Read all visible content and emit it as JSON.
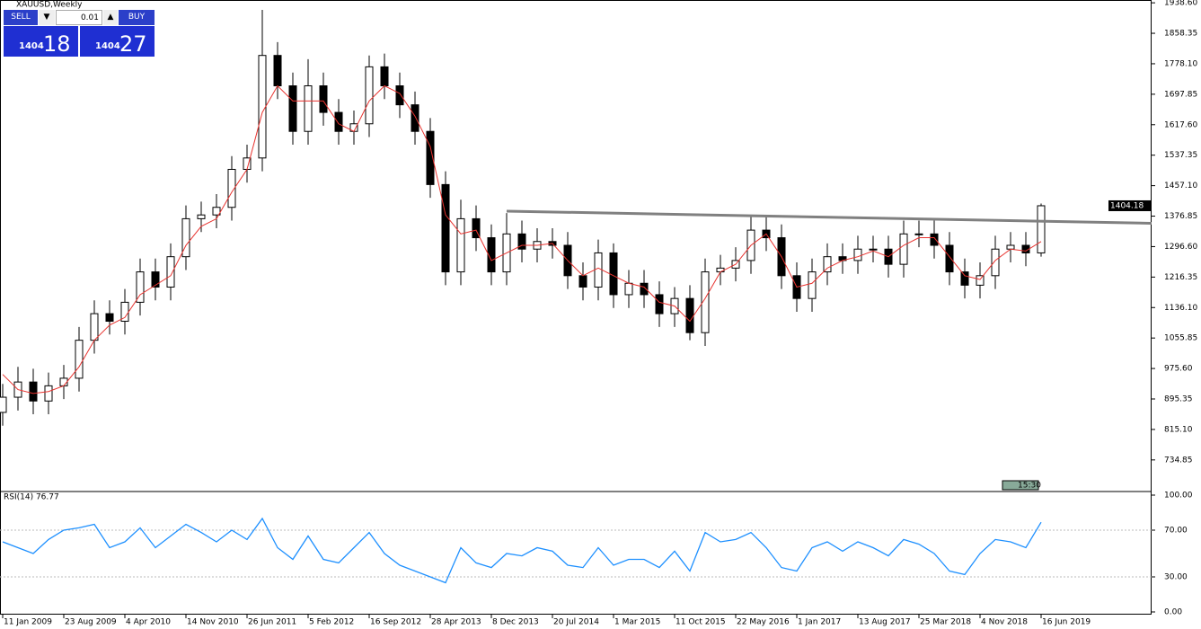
{
  "chart_data": {
    "type": "candlestick",
    "title": "XAUUSD,Weekly",
    "categories": [
      "11 Jan 2009",
      null,
      null,
      null,
      "23 Aug 2009",
      null,
      null,
      null,
      "4 Apr 2010",
      null,
      null,
      null,
      "14 Nov 2010",
      null,
      null,
      null,
      "26 Jun 2011",
      null,
      null,
      null,
      "5 Feb 2012",
      null,
      null,
      null,
      "16 Sep 2012",
      null,
      null,
      null,
      "28 Apr 2013",
      null,
      null,
      null,
      "8 Dec 2013",
      null,
      null,
      null,
      "20 Jul 2014",
      null,
      null,
      null,
      "1 Mar 2015",
      null,
      null,
      null,
      "11 Oct 2015",
      null,
      null,
      null,
      "22 May 2016",
      null,
      null,
      null,
      "1 Jan 2017",
      null,
      null,
      null,
      "13 Aug 2017",
      null,
      null,
      null,
      "25 Mar 2018",
      null,
      null,
      null,
      "4 Nov 2018",
      null,
      null,
      null,
      "16 Jun 2019"
    ],
    "open": [
      860,
      900,
      940,
      890,
      930,
      950,
      1050,
      1120,
      1100,
      1150,
      1230,
      1190,
      1270,
      1370,
      1380,
      1400,
      1500,
      1530,
      1800,
      1720,
      1600,
      1720,
      1650,
      1600,
      1620,
      1770,
      1720,
      1670,
      1600,
      1460,
      1230,
      1370,
      1320,
      1230,
      1330,
      1290,
      1310,
      1300,
      1220,
      1190,
      1280,
      1170,
      1200,
      1170,
      1120,
      1160,
      1070,
      1230,
      1240,
      1260,
      1340,
      1320,
      1220,
      1160,
      1230,
      1270,
      1260,
      1290,
      1290,
      1250,
      1330,
      1330,
      1300,
      1230,
      1195,
      1220,
      1290,
      1300,
      1280
    ],
    "high": [
      935,
      980,
      975,
      965,
      985,
      1085,
      1155,
      1155,
      1185,
      1265,
      1265,
      1305,
      1405,
      1415,
      1435,
      1535,
      1565,
      1920,
      1835,
      1755,
      1790,
      1755,
      1685,
      1655,
      1800,
      1805,
      1755,
      1705,
      1635,
      1495,
      1420,
      1405,
      1355,
      1385,
      1365,
      1345,
      1345,
      1335,
      1255,
      1315,
      1305,
      1235,
      1235,
      1205,
      1190,
      1195,
      1265,
      1275,
      1295,
      1375,
      1375,
      1355,
      1255,
      1265,
      1305,
      1305,
      1325,
      1325,
      1325,
      1365,
      1365,
      1365,
      1335,
      1265,
      1255,
      1325,
      1335,
      1335,
      1410
    ],
    "low": [
      825,
      865,
      855,
      855,
      895,
      915,
      1015,
      1065,
      1065,
      1115,
      1155,
      1155,
      1235,
      1335,
      1345,
      1365,
      1465,
      1495,
      1685,
      1565,
      1565,
      1615,
      1565,
      1565,
      1585,
      1685,
      1635,
      1565,
      1425,
      1195,
      1195,
      1285,
      1195,
      1195,
      1255,
      1255,
      1265,
      1185,
      1155,
      1155,
      1135,
      1135,
      1135,
      1085,
      1085,
      1050,
      1035,
      1195,
      1205,
      1225,
      1285,
      1185,
      1125,
      1125,
      1195,
      1225,
      1225,
      1255,
      1215,
      1215,
      1295,
      1265,
      1195,
      1160,
      1160,
      1185,
      1255,
      1245,
      1270
    ],
    "close": [
      900,
      940,
      890,
      930,
      950,
      1050,
      1120,
      1100,
      1150,
      1230,
      1190,
      1270,
      1370,
      1380,
      1400,
      1500,
      1530,
      1800,
      1720,
      1600,
      1720,
      1650,
      1600,
      1620,
      1770,
      1720,
      1670,
      1600,
      1460,
      1230,
      1370,
      1320,
      1230,
      1330,
      1290,
      1310,
      1300,
      1220,
      1190,
      1280,
      1170,
      1200,
      1170,
      1120,
      1160,
      1070,
      1230,
      1240,
      1260,
      1340,
      1320,
      1220,
      1160,
      1230,
      1270,
      1260,
      1290,
      1290,
      1250,
      1330,
      1330,
      1300,
      1230,
      1195,
      1220,
      1290,
      1300,
      1280,
      1404.18
    ],
    "ma": {
      "color": "#e8322e",
      "values": [
        960,
        920,
        910,
        915,
        930,
        980,
        1050,
        1090,
        1110,
        1170,
        1195,
        1220,
        1300,
        1350,
        1370,
        1440,
        1500,
        1650,
        1720,
        1680,
        1680,
        1680,
        1620,
        1600,
        1680,
        1720,
        1700,
        1640,
        1560,
        1380,
        1330,
        1340,
        1260,
        1280,
        1300,
        1300,
        1305,
        1260,
        1220,
        1240,
        1220,
        1200,
        1190,
        1150,
        1140,
        1100,
        1160,
        1230,
        1250,
        1300,
        1330,
        1270,
        1190,
        1200,
        1240,
        1260,
        1270,
        1285,
        1270,
        1300,
        1320,
        1320,
        1270,
        1220,
        1210,
        1260,
        1290,
        1285,
        1310
      ]
    },
    "trendline": {
      "color": "#808080",
      "start": 1390,
      "end": 1358
    },
    "last_price_label": "1404.18",
    "time_label": "15:30",
    "ylim": [
      654,
      1946
    ],
    "yticks": [
      {
        "value": 1938.6,
        "label": "1938.60"
      },
      1858.35,
      {
        "value": 1778.1,
        "label": "1778.10"
      },
      1697.85,
      {
        "value": 1617.6,
        "label": "1617.60"
      },
      1537.35,
      {
        "value": 1457.1,
        "label": "1457.10"
      },
      1376.85,
      {
        "value": 1296.6,
        "label": "1296.60"
      },
      1216.35,
      {
        "value": 1136.1,
        "label": "1136.10"
      },
      1055.85,
      {
        "value": 975.6,
        "label": "975.60"
      },
      895.35,
      {
        "value": 815.1,
        "label": "815.10"
      },
      734.85
    ],
    "rsi": {
      "label": "RSI(14) 76.77",
      "color": "#1e90ff",
      "ylim": [
        0,
        100
      ],
      "yticks": [
        {
          "value": 100,
          "label": "100.00"
        },
        {
          "value": 70,
          "label": "70.00"
        },
        {
          "value": 30,
          "label": "30.00"
        },
        {
          "value": 0,
          "label": "0.00"
        }
      ],
      "values": [
        60,
        55,
        50,
        62,
        70,
        72,
        75,
        55,
        60,
        72,
        55,
        65,
        75,
        68,
        60,
        70,
        62,
        80,
        55,
        45,
        65,
        45,
        42,
        55,
        68,
        50,
        40,
        35,
        30,
        25,
        55,
        42,
        38,
        50,
        48,
        55,
        52,
        40,
        38,
        55,
        40,
        45,
        45,
        38,
        52,
        35,
        68,
        60,
        62,
        68,
        55,
        38,
        35,
        55,
        60,
        52,
        60,
        55,
        48,
        62,
        58,
        50,
        35,
        32,
        50,
        62,
        60,
        55,
        76.77
      ]
    }
  },
  "trade_panel": {
    "sell": "SELL",
    "lot": "0.01",
    "buy": "BUY",
    "bid_big": "1404",
    "bid_small": "18",
    "ask_big": "1404",
    "ask_small": "27"
  }
}
